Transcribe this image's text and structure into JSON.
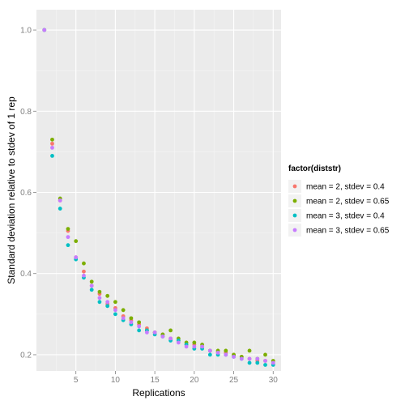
{
  "chart_data": {
    "type": "scatter",
    "title": "",
    "xlabel": "Replications",
    "ylabel": "Standard deviation relative to stdev of 1 rep",
    "xlim": [
      0,
      31
    ],
    "ylim": [
      0.16,
      1.05
    ],
    "xticks": [
      5,
      10,
      15,
      20,
      25,
      30
    ],
    "yticks": [
      0.2,
      0.4,
      0.6,
      0.8,
      1.0
    ],
    "ytick_labels": [
      "0.2",
      "0.4",
      "0.6",
      "0.8",
      "1.0"
    ],
    "grid": true,
    "background": "#ebebeb",
    "legend": {
      "title": "factor(diststr)",
      "position": "right"
    },
    "x": [
      1,
      2,
      3,
      4,
      5,
      6,
      7,
      8,
      9,
      10,
      11,
      12,
      13,
      14,
      15,
      16,
      17,
      18,
      19,
      20,
      21,
      22,
      23,
      24,
      25,
      26,
      27,
      28,
      29,
      30
    ],
    "series": [
      {
        "name": "mean = 2, stdev = 0.4",
        "color": "#F8766D",
        "values": [
          1.0,
          0.72,
          0.58,
          0.505,
          0.44,
          0.405,
          0.37,
          0.35,
          0.325,
          0.315,
          0.295,
          0.285,
          0.275,
          0.265,
          0.255,
          0.25,
          0.24,
          0.235,
          0.225,
          0.225,
          0.22,
          0.21,
          0.205,
          0.205,
          0.2,
          0.195,
          0.19,
          0.185,
          0.185,
          0.18
        ]
      },
      {
        "name": "mean = 2, stdev = 0.65",
        "color": "#7CAE00",
        "values": [
          1.0,
          0.73,
          0.585,
          0.51,
          0.48,
          0.425,
          0.38,
          0.355,
          0.345,
          0.33,
          0.31,
          0.29,
          0.28,
          0.26,
          0.255,
          0.25,
          0.26,
          0.24,
          0.23,
          0.23,
          0.225,
          0.21,
          0.21,
          0.21,
          0.2,
          0.195,
          0.21,
          0.19,
          0.2,
          0.185
        ]
      },
      {
        "name": "mean = 3, stdev = 0.4",
        "color": "#00BFC4",
        "values": [
          1.0,
          0.69,
          0.56,
          0.47,
          0.435,
          0.39,
          0.36,
          0.33,
          0.32,
          0.3,
          0.285,
          0.275,
          0.26,
          0.26,
          0.25,
          0.245,
          0.235,
          0.235,
          0.225,
          0.215,
          0.215,
          0.2,
          0.2,
          0.2,
          0.195,
          0.19,
          0.18,
          0.18,
          0.175,
          0.175
        ]
      },
      {
        "name": "mean = 3, stdev = 0.65",
        "color": "#C77CFF",
        "values": [
          1.0,
          0.71,
          0.58,
          0.49,
          0.44,
          0.395,
          0.37,
          0.34,
          0.33,
          0.31,
          0.29,
          0.28,
          0.27,
          0.255,
          0.255,
          0.245,
          0.24,
          0.23,
          0.22,
          0.22,
          0.22,
          0.21,
          0.205,
          0.2,
          0.195,
          0.19,
          0.19,
          0.19,
          0.185,
          0.18
        ]
      }
    ]
  }
}
